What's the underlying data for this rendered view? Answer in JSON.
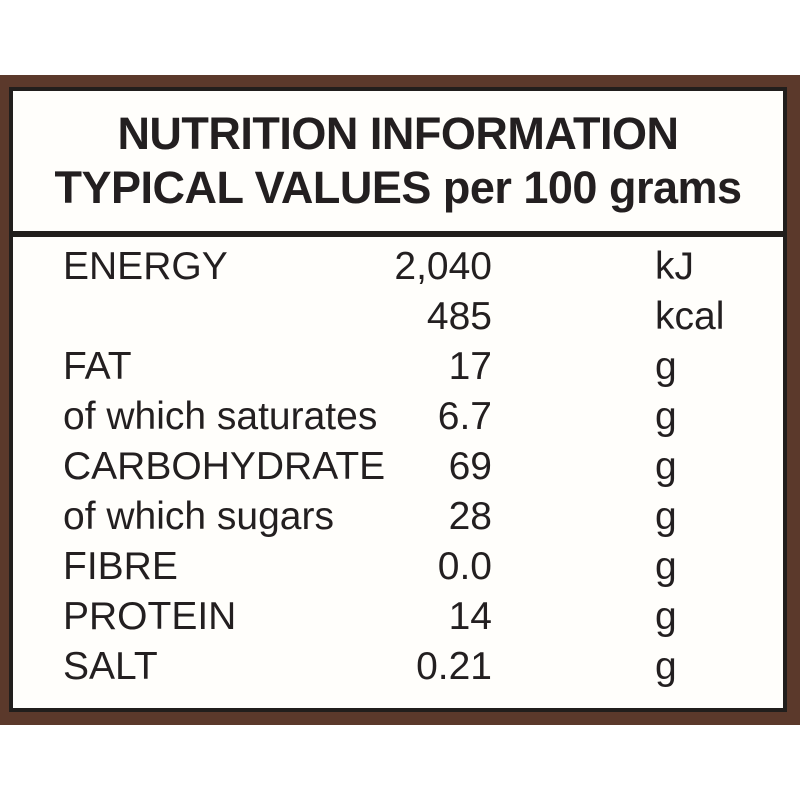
{
  "colors": {
    "page_background": "#ffffff",
    "label_border_brown": "#5b392b",
    "inner_border_black": "#211e1c",
    "label_background": "#fffefb",
    "text": "#231f20"
  },
  "header": {
    "line1": "NUTRITION INFORMATION",
    "line2": "TYPICAL VALUES per 100 grams"
  },
  "rows": [
    {
      "name": "ENERGY",
      "value": "2,040",
      "unit": "kJ"
    },
    {
      "name": "",
      "value": "485",
      "unit": "kcal"
    },
    {
      "name": "FAT",
      "value": "17",
      "unit": "g"
    },
    {
      "name": "of which saturates",
      "value": "6.7",
      "unit": "g"
    },
    {
      "name": "CARBOHYDRATE",
      "value": "69",
      "unit": "g"
    },
    {
      "name": "of which sugars",
      "value": "28",
      "unit": "g"
    },
    {
      "name": "FIBRE",
      "value": "0.0",
      "unit": "g"
    },
    {
      "name": "PROTEIN",
      "value": "14",
      "unit": "g"
    },
    {
      "name": "SALT",
      "value": "0.21",
      "unit": "g"
    }
  ]
}
